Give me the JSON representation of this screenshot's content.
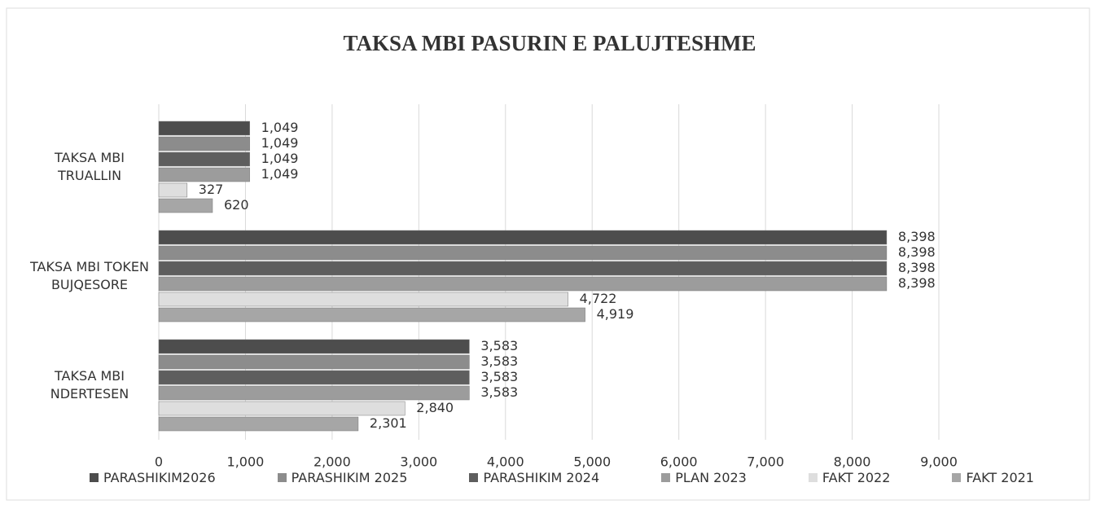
{
  "chart_data": {
    "type": "hbar",
    "title": "TAKSA MBI PASURIN E PALUJTESHME",
    "categories": [
      "TAKSA MBI TRUALLIN",
      "TAKSA MBI TOKEN BUJQESORE",
      "TAKSA MBI NDERTESEN"
    ],
    "series": [
      {
        "name": "PARASHIKIM2026",
        "color": "#4d4d4d",
        "values": [
          1049,
          8398,
          3583
        ],
        "value_labels": [
          "1,049",
          "8,398",
          "3,583"
        ]
      },
      {
        "name": "PARASHIKIM 2025",
        "color": "#8c8c8c",
        "values": [
          1049,
          8398,
          3583
        ],
        "value_labels": [
          "1,049",
          "8,398",
          "3,583"
        ]
      },
      {
        "name": "PARASHIKIM 2024",
        "color": "#5e5e5e",
        "values": [
          1049,
          8398,
          3583
        ],
        "value_labels": [
          "1,049",
          "8,398",
          "3,583"
        ]
      },
      {
        "name": "PLAN 2023",
        "color": "#9c9c9c",
        "values": [
          1049,
          8398,
          3583
        ],
        "value_labels": [
          "1,049",
          "8,398",
          "3,583"
        ]
      },
      {
        "name": "FAKT 2022",
        "color": "#dedede",
        "values": [
          327,
          4722,
          2840
        ],
        "value_labels": [
          "327",
          "4,722",
          "2,840"
        ]
      },
      {
        "name": "FAKT 2021",
        "color": "#a6a6a6",
        "values": [
          620,
          4919,
          2301
        ],
        "value_labels": [
          "620",
          "4,919",
          "2,301"
        ]
      }
    ],
    "xlim": [
      0,
      9000
    ],
    "xticks": [
      0,
      {
        "value": 1000,
        "label": "1,000"
      },
      {
        "value": 2000,
        "label": "2,000"
      },
      {
        "value": 3000,
        "label": "3,000"
      },
      {
        "value": 4000,
        "label": "4,000"
      },
      {
        "value": 5000,
        "label": "5,000"
      },
      {
        "value": 6000,
        "label": "6,000"
      },
      {
        "value": 7000,
        "label": "7,000"
      },
      {
        "value": 8000,
        "label": "8,000"
      },
      {
        "value": 9000,
        "label": "9,000"
      }
    ],
    "grid": true,
    "legend": "bottom"
  }
}
